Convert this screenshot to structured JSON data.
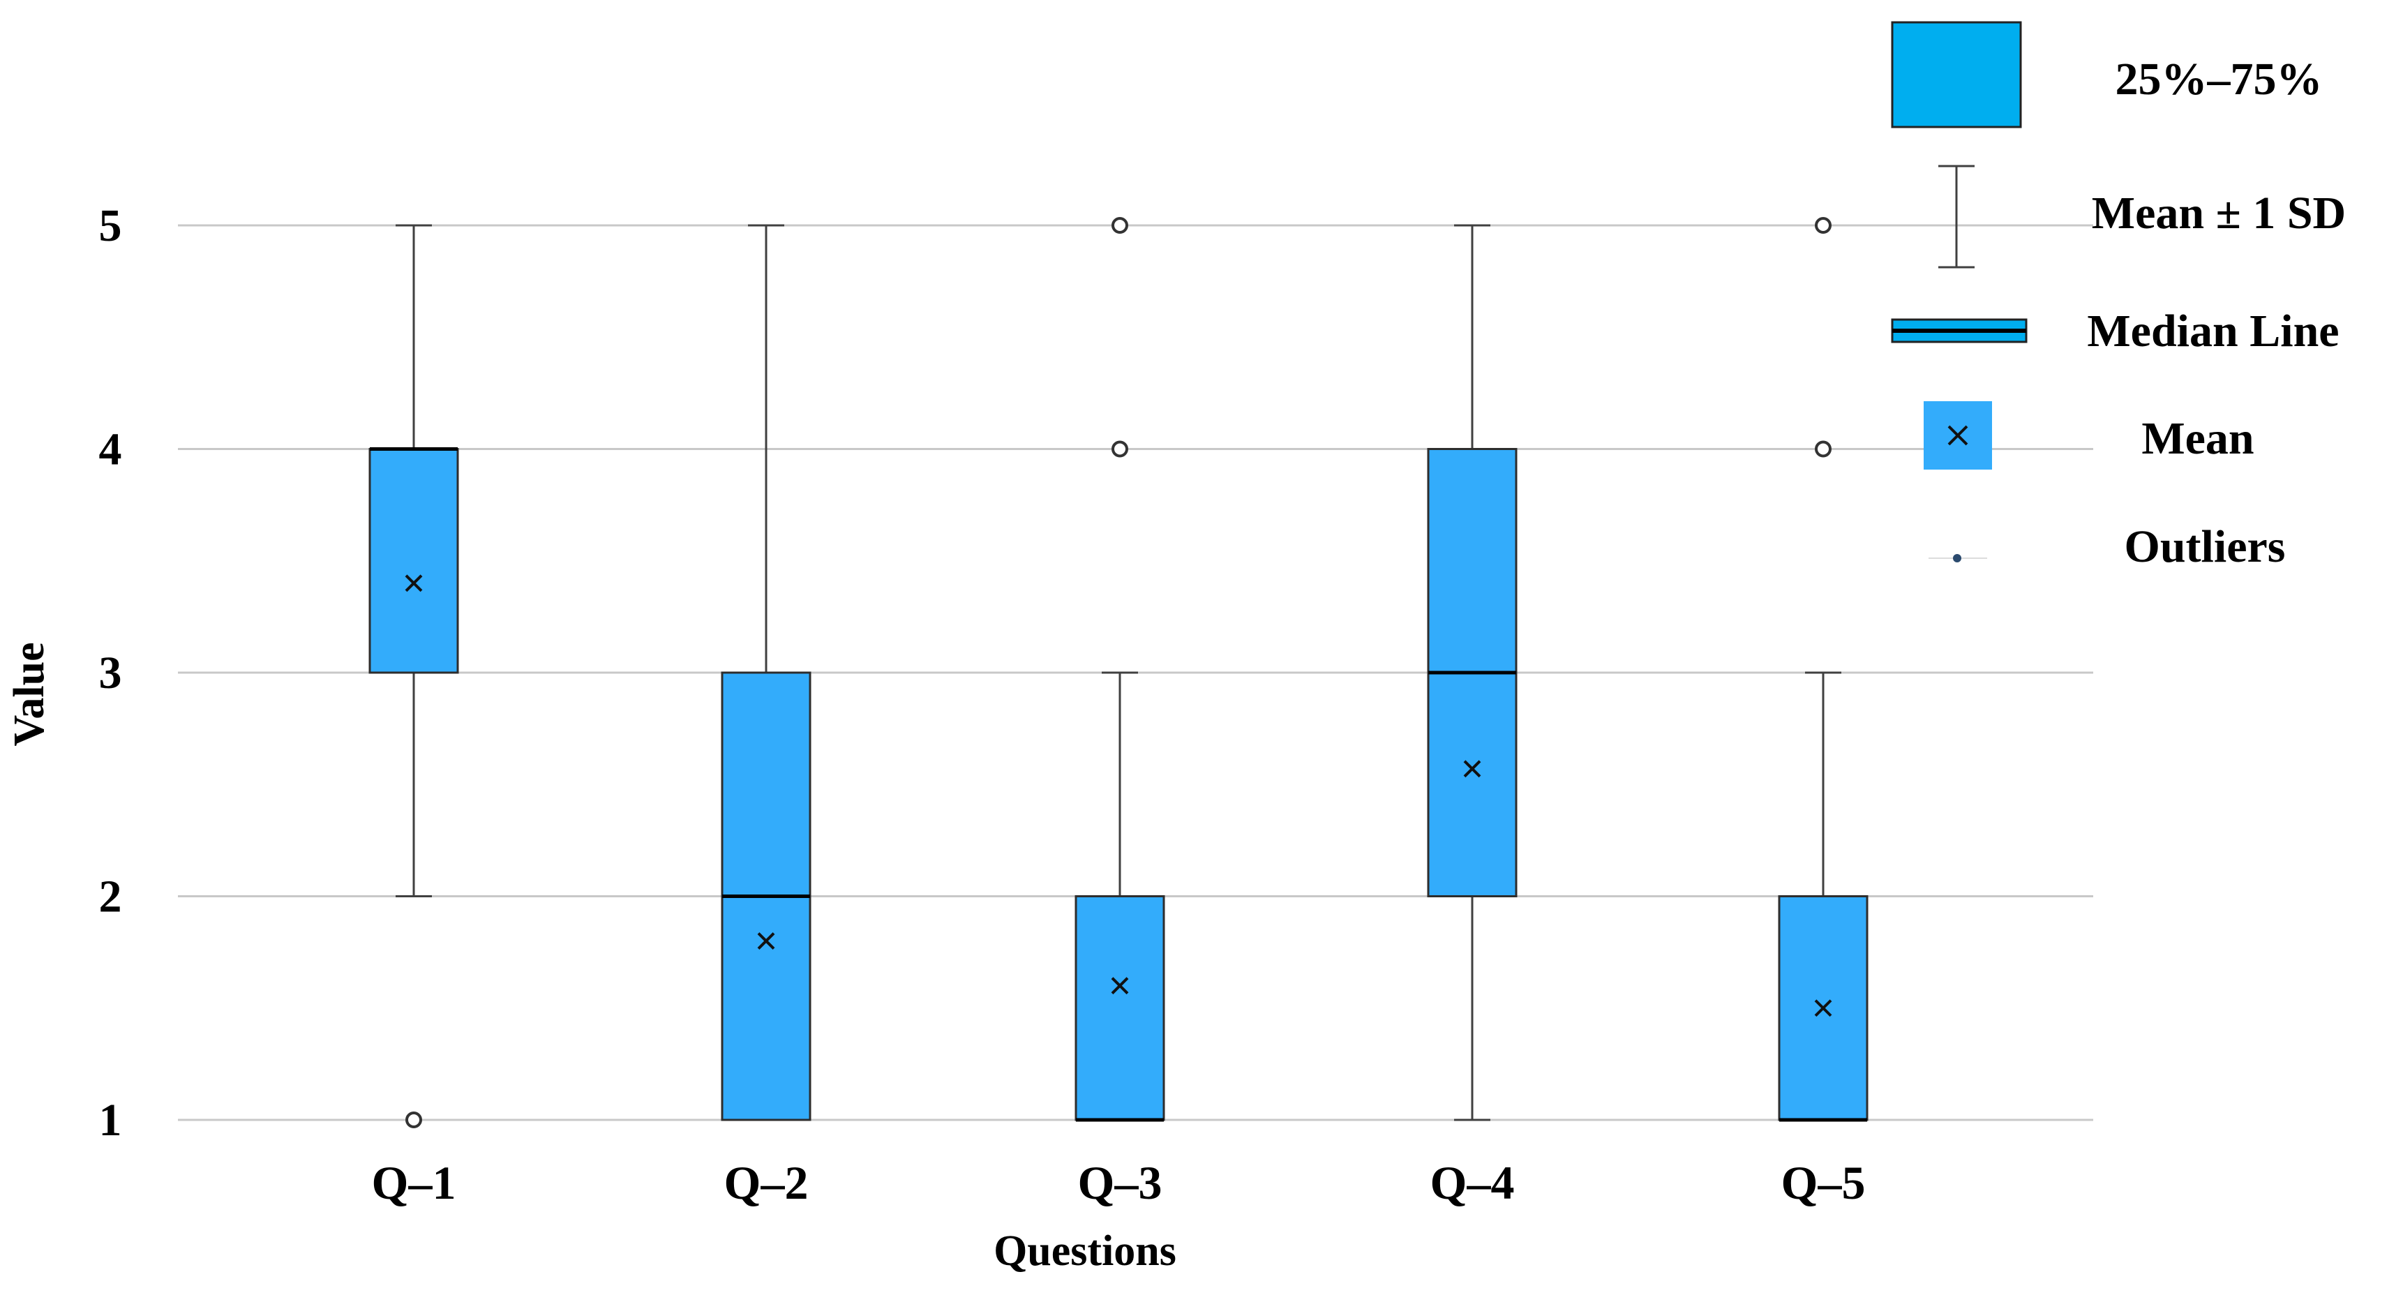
{
  "chart_data": {
    "type": "box",
    "categories": [
      "Q–1",
      "Q–2",
      "Q–3",
      "Q–4",
      "Q–5"
    ],
    "boxes": [
      {
        "name": "Q–1",
        "q1": 3,
        "median": 4,
        "q3": 4,
        "whisker_low": 2,
        "whisker_high": 5,
        "mean": 3.4,
        "outliers": [
          1
        ]
      },
      {
        "name": "Q–2",
        "q1": 1,
        "median": 2,
        "q3": 3,
        "whisker_low": 1,
        "whisker_high": 5,
        "mean": 1.8,
        "outliers": []
      },
      {
        "name": "Q–3",
        "q1": 1,
        "median": 1,
        "q3": 2,
        "whisker_low": 1,
        "whisker_high": 3,
        "mean": 1.6,
        "outliers": [
          4,
          5
        ]
      },
      {
        "name": "Q–4",
        "q1": 2,
        "median": 3,
        "q3": 4,
        "whisker_low": 1,
        "whisker_high": 5,
        "mean": 2.57,
        "outliers": []
      },
      {
        "name": "Q–5",
        "q1": 1,
        "median": 1,
        "q3": 2,
        "whisker_low": 1,
        "whisker_high": 3,
        "mean": 1.5,
        "outliers": [
          4,
          5
        ]
      }
    ],
    "xlabel": "Questions",
    "ylabel": "Value",
    "yticks": [
      1,
      2,
      3,
      4,
      5
    ],
    "ylim": [
      1,
      5
    ],
    "grid": true,
    "legend_position": "top-right",
    "legend": [
      {
        "key": "box",
        "label": "25%–75%"
      },
      {
        "key": "whisker",
        "label": "Mean ± 1 SD"
      },
      {
        "key": "median",
        "label": "Median Line"
      },
      {
        "key": "mean",
        "label": "Mean"
      },
      {
        "key": "outlier",
        "label": "Outliers"
      }
    ],
    "colors": {
      "box_fill": "#33acfb",
      "legend_box_fill": "#00aeef",
      "grid": "#c8c8c8",
      "whisker": "#404040",
      "text": "#000000"
    }
  }
}
